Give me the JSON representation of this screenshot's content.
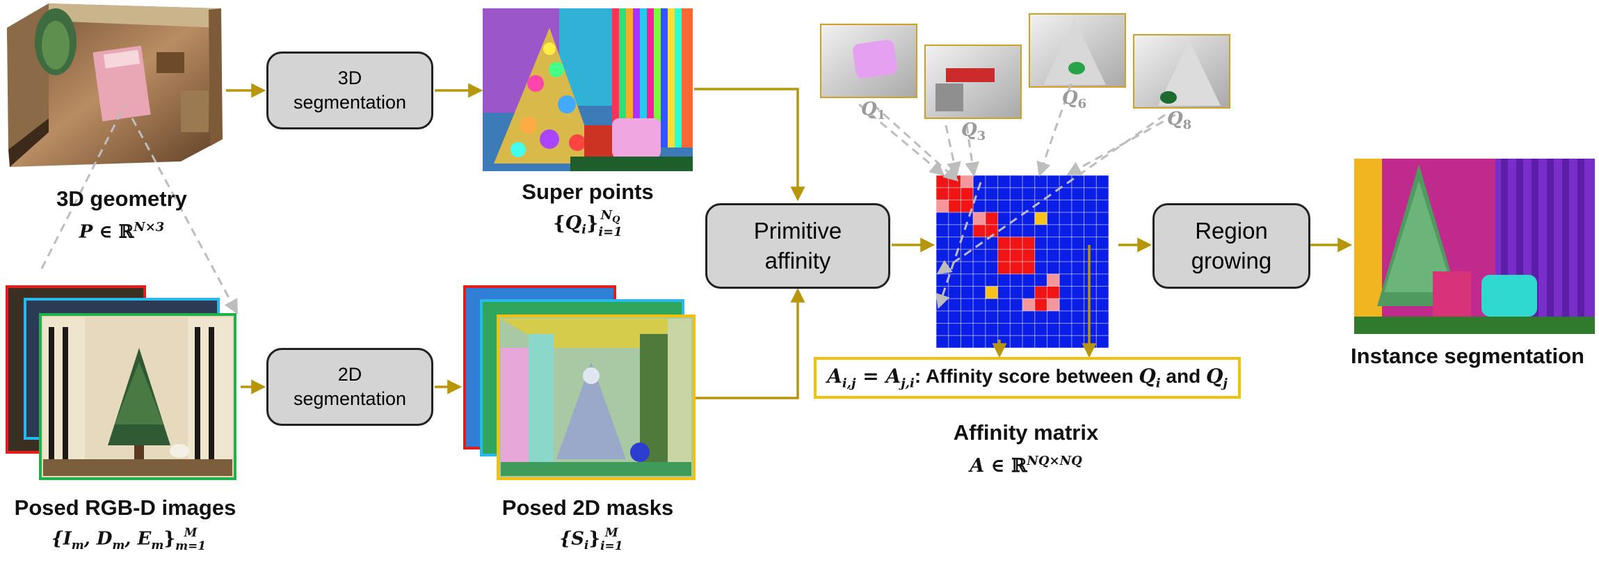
{
  "boxes": {
    "seg3d": [
      "3D",
      "segmentation"
    ],
    "seg2d": [
      "2D",
      "segmentation"
    ],
    "primitive": [
      "Primitive",
      "affinity"
    ],
    "region": [
      "Region",
      "growing"
    ]
  },
  "labels": {
    "geometry": "3D geometry",
    "superpoints": "Super points",
    "rgbd": "Posed RGB-D images",
    "masks": "Posed 2D masks",
    "affinity_matrix": "Affinity matrix",
    "instance": "Instance segmentation"
  },
  "math": {
    "geometry_P": "P",
    "geometry_in": " ∈ ℝ",
    "geometry_sup": "N×3",
    "sp_open": "{",
    "sp_Q": "Q",
    "sp_i": "i",
    "sp_close": "}",
    "sp_sup": "N",
    "sp_supsub": "Q",
    "sp_sub": "i=1",
    "rgbd_set": "{I",
    "rgbd_m1": "m",
    "rgbd_D": ", D",
    "rgbd_m2": "m",
    "rgbd_E": ", E",
    "rgbd_m3": "m",
    "rgbd_close": "}",
    "rgbd_sup": "M",
    "rgbd_sub": "m=1",
    "mask_open": "{S",
    "mask_i": "i",
    "mask_close": "}",
    "mask_sup": "M",
    "mask_sub": "i=1",
    "am_A": "A",
    "am_in": " ∈ ℝ",
    "am_sup": "NQ×NQ"
  },
  "query_labels": [
    {
      "base": "Q",
      "sub": "1"
    },
    {
      "base": "Q",
      "sub": "3"
    },
    {
      "base": "Q",
      "sub": "6"
    },
    {
      "base": "Q",
      "sub": "8"
    }
  ],
  "affinity_note": {
    "lhs_A1": "A",
    "lhs_s1": "i,j",
    "eq": " = ",
    "lhs_A2": "A",
    "lhs_s2": "j,i",
    "text": ": Affinity score between ",
    "q1": "Q",
    "q1s": "i",
    "and": " and ",
    "q2": "Q",
    "q2s": "j"
  },
  "colors": {
    "arrow": "#b8960c",
    "dashed": "#bdbdbd",
    "matrix_blue": "#0a1ee6",
    "matrix_red": "#f01414",
    "matrix_pink": "#f5969b",
    "matrix_yellow": "#f7c31a",
    "frame_red": "#e21d1d",
    "frame_cyan": "#2ab8e8",
    "frame_green": "#22b04a",
    "frame_yellow": "#f2c10e",
    "query_frame": "#c9a227"
  }
}
